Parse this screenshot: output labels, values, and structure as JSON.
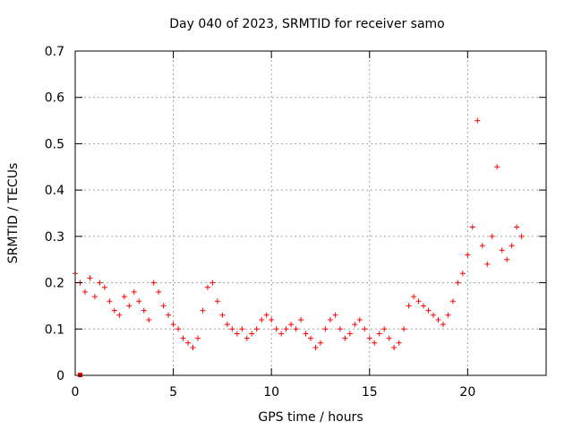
{
  "chart_data": {
    "type": "scatter",
    "title": "Day 040 of 2023, SRMTID for receiver samo",
    "xlabel": "GPS time / hours",
    "ylabel": "SRMTID / TECUs",
    "xlim": [
      0,
      24
    ],
    "ylim": [
      0,
      0.7
    ],
    "x_ticks": [
      0,
      5,
      10,
      15,
      20
    ],
    "x_tick_labels": [
      "0",
      "5",
      "10",
      "15",
      "20"
    ],
    "y_ticks": [
      0,
      0.1,
      0.2,
      0.3,
      0.4,
      0.5,
      0.6,
      0.7
    ],
    "y_tick_labels": [
      "0",
      "0.1",
      "0.2",
      "0.3",
      "0.4",
      "0.5",
      "0.6",
      "0.7"
    ],
    "grid": true,
    "marker": "+",
    "color": "#ff0000",
    "outlier_points": [
      {
        "x": 0.25,
        "y": 0.0
      }
    ],
    "series": [
      {
        "name": "SRMTID",
        "x": [
          0.0,
          0.25,
          0.5,
          0.75,
          1.0,
          1.25,
          1.5,
          1.75,
          2.0,
          2.25,
          2.5,
          2.75,
          3.0,
          3.25,
          3.5,
          3.75,
          4.0,
          4.25,
          4.5,
          4.75,
          5.0,
          5.25,
          5.5,
          5.75,
          6.0,
          6.25,
          6.5,
          6.75,
          7.0,
          7.25,
          7.5,
          7.75,
          8.0,
          8.25,
          8.5,
          8.75,
          9.0,
          9.25,
          9.5,
          9.75,
          10.0,
          10.25,
          10.5,
          10.75,
          11.0,
          11.25,
          11.5,
          11.75,
          12.0,
          12.25,
          12.5,
          12.75,
          13.0,
          13.25,
          13.5,
          13.75,
          14.0,
          14.25,
          14.5,
          14.75,
          15.0,
          15.25,
          15.5,
          15.75,
          16.0,
          16.25,
          16.5,
          16.75,
          17.0,
          17.25,
          17.5,
          17.75,
          18.0,
          18.25,
          18.5,
          18.75,
          19.0,
          19.25,
          19.5,
          19.75,
          20.0,
          20.25,
          20.5,
          20.75,
          21.0,
          21.25,
          21.5,
          21.75,
          22.0,
          22.25,
          22.5,
          22.75
        ],
        "values": [
          0.22,
          0.2,
          0.18,
          0.21,
          0.17,
          0.2,
          0.19,
          0.16,
          0.14,
          0.13,
          0.17,
          0.15,
          0.18,
          0.16,
          0.14,
          0.12,
          0.2,
          0.18,
          0.15,
          0.13,
          0.11,
          0.1,
          0.08,
          0.07,
          0.06,
          0.08,
          0.14,
          0.19,
          0.2,
          0.16,
          0.13,
          0.11,
          0.1,
          0.09,
          0.1,
          0.08,
          0.09,
          0.1,
          0.12,
          0.13,
          0.12,
          0.1,
          0.09,
          0.1,
          0.11,
          0.1,
          0.12,
          0.09,
          0.08,
          0.06,
          0.07,
          0.1,
          0.12,
          0.13,
          0.1,
          0.08,
          0.09,
          0.11,
          0.12,
          0.1,
          0.08,
          0.07,
          0.09,
          0.1,
          0.08,
          0.06,
          0.07,
          0.1,
          0.15,
          0.17,
          0.16,
          0.15,
          0.14,
          0.13,
          0.12,
          0.11,
          0.13,
          0.16,
          0.2,
          0.22,
          0.26,
          0.32,
          0.55,
          0.28,
          0.24,
          0.3,
          0.45,
          0.27,
          0.25,
          0.28,
          0.32,
          0.3
        ]
      }
    ]
  }
}
